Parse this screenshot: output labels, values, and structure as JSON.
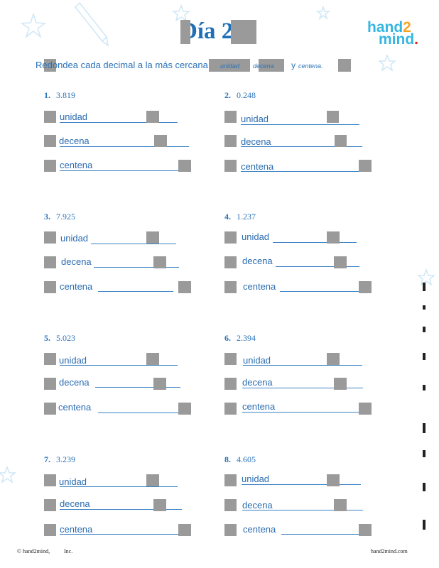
{
  "header": {
    "title": "Día 2",
    "logo": {
      "part1": "hand",
      "num": "2",
      "part2": "mind",
      "dot": "."
    }
  },
  "instructions": {
    "text": "Redondea cada decimal a la más cercana",
    "opt_unidad": "unidad",
    "opt_decena": "decena",
    "opt_y": "y",
    "opt_centena": "centena."
  },
  "problems": [
    {
      "num": "1.",
      "value": "3.819",
      "labels": [
        "unidad",
        "decena",
        "centena"
      ]
    },
    {
      "num": "2.",
      "value": "0.248",
      "labels": [
        "unidad",
        "decena",
        "centena"
      ]
    },
    {
      "num": "3.",
      "value": "7.925",
      "labels": [
        "unidad",
        "decena",
        "centena"
      ]
    },
    {
      "num": "4.",
      "value": "1.237",
      "labels": [
        "unidad",
        "decena",
        "centena"
      ]
    },
    {
      "num": "5.",
      "value": "5.023",
      "labels": [
        "unidad",
        "decena",
        "centena"
      ]
    },
    {
      "num": "6.",
      "value": "2.394",
      "labels": [
        "unidad",
        "decena",
        "centena"
      ]
    },
    {
      "num": "7.",
      "value": "3.239",
      "labels": [
        "unidad",
        "decena",
        "centena"
      ]
    },
    {
      "num": "8.",
      "value": "4.605",
      "labels": [
        "unidad",
        "decena",
        "centena"
      ]
    }
  ],
  "footer": {
    "copyright": "© hand2mind,",
    "inc": "Inc.",
    "site": "hand2mind.com"
  }
}
